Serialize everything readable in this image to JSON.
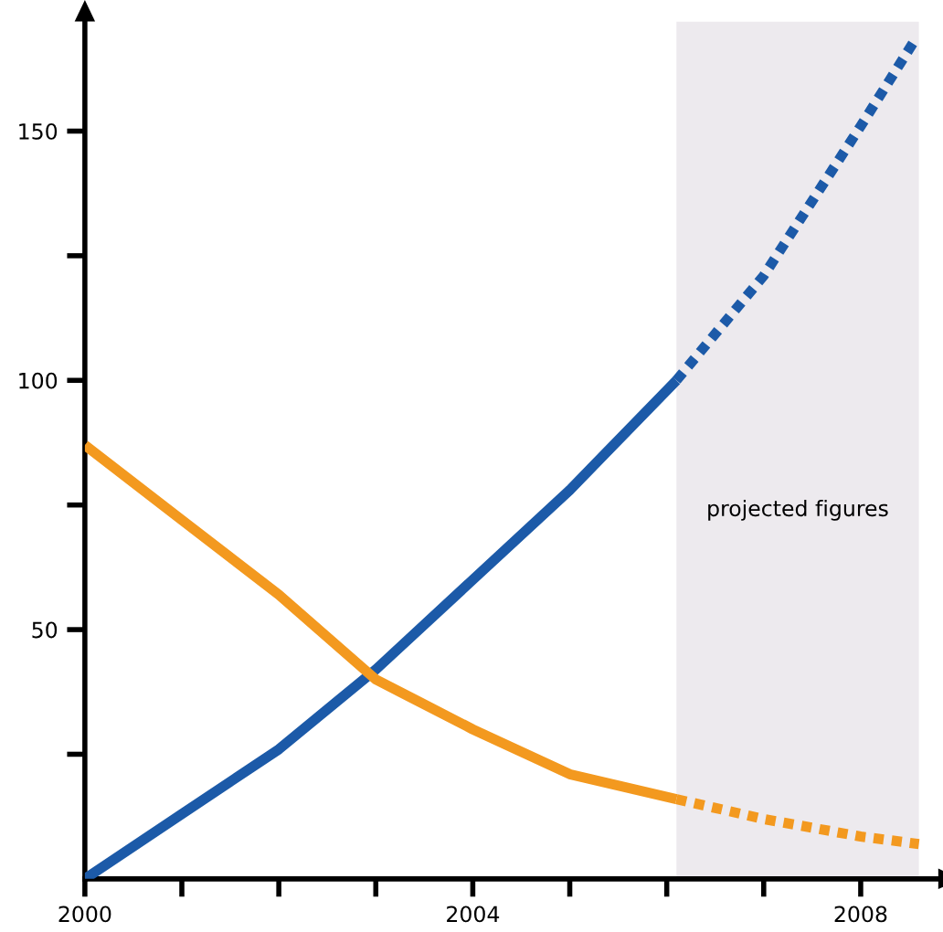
{
  "chart_data": {
    "type": "line",
    "xlim": [
      2000,
      2008.8
    ],
    "ylim": [
      0,
      172
    ],
    "xticks": [
      2000,
      {
        "value": 2001,
        "label": null
      },
      {
        "value": 2002,
        "label": null
      },
      {
        "value": 2003,
        "label": null
      },
      2004,
      {
        "value": 2005,
        "label": null
      },
      {
        "value": 2006,
        "label": null
      },
      {
        "value": 2007,
        "label": null
      },
      2008
    ],
    "yticks": [
      {
        "value": 25,
        "label": null
      },
      50,
      {
        "value": 75,
        "label": null
      },
      100,
      {
        "value": 125,
        "label": null
      },
      150
    ],
    "grid": false,
    "marker": "none",
    "bands": [
      {
        "axis": "x",
        "from": 2006.1,
        "to": 2008.6,
        "label": "projected figures",
        "color": "#edeaee"
      }
    ],
    "series": [
      {
        "color": "#1c5aa8",
        "line_style": "solid",
        "x": [
          2000,
          2001,
          2002,
          2003,
          2004,
          2005,
          2006.1
        ],
        "values": [
          0,
          13,
          26,
          42,
          60,
          78,
          100
        ]
      },
      {
        "color": "#1c5aa8",
        "line_style": "dotted",
        "x": [
          2006.1,
          2007,
          2008,
          2008.55
        ],
        "values": [
          100,
          121,
          151,
          168
        ]
      },
      {
        "color": "#f3991f",
        "line_style": "solid",
        "x": [
          2000,
          2001,
          2002,
          2003,
          2004,
          2005,
          2006.1
        ],
        "values": [
          87,
          72,
          57,
          40,
          30,
          21,
          16
        ]
      },
      {
        "color": "#f3991f",
        "line_style": "dotted",
        "x": [
          2006.1,
          2007,
          2008,
          2008.6
        ],
        "values": [
          16,
          12,
          8.5,
          7
        ]
      }
    ]
  }
}
